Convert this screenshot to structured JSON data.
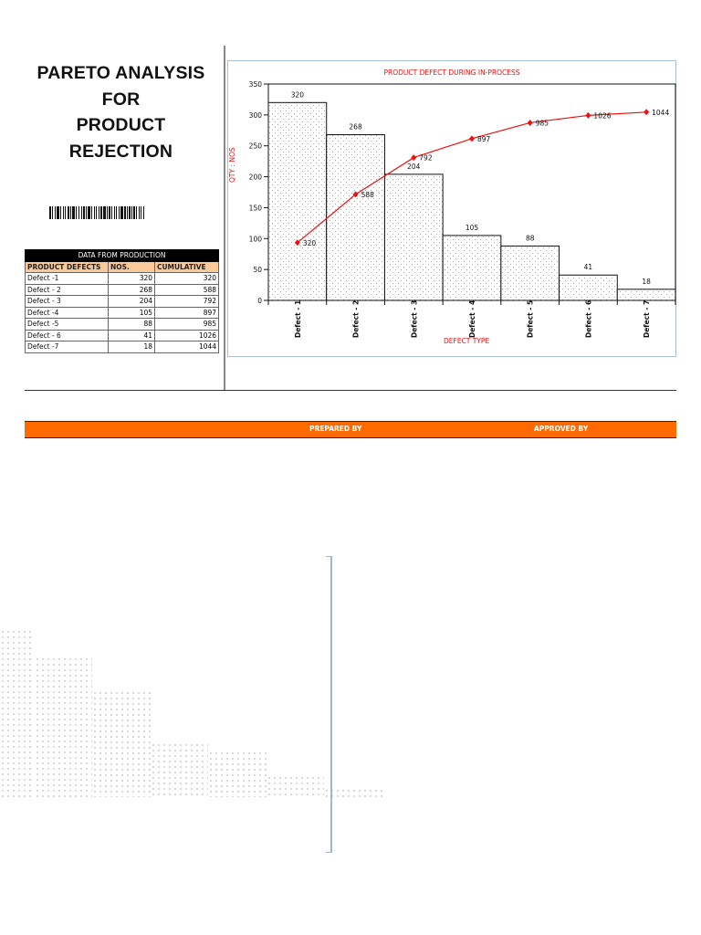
{
  "title": {
    "lines": [
      "PARETO ANALYSIS",
      "FOR",
      "PRODUCT",
      "REJECTION"
    ]
  },
  "table": {
    "caption": "DATA FROM PRODUCTION",
    "headers": [
      "PRODUCT DEFECTS",
      "NOS.",
      "CUMULATIVE"
    ],
    "rows": [
      {
        "defect": "Defect -1",
        "nos": "320",
        "cumulative": "320"
      },
      {
        "defect": "Defect - 2",
        "nos": "268",
        "cumulative": "588"
      },
      {
        "defect": "Defect - 3",
        "nos": "204",
        "cumulative": "792"
      },
      {
        "defect": "Defect -4",
        "nos": "105",
        "cumulative": "897"
      },
      {
        "defect": "Defect -5",
        "nos": "88",
        "cumulative": "985"
      },
      {
        "defect": "Defect - 6",
        "nos": "41",
        "cumulative": "1026"
      },
      {
        "defect": "Defect -7",
        "nos": "18",
        "cumulative": "1044"
      }
    ]
  },
  "footer": {
    "prepared_by": "PREPARED BY",
    "approved_by": "APPROVED BY",
    "bar_color": "#ff6a00"
  },
  "chart_data": {
    "type": "bar",
    "title": "PRODUCT DEFECT DURING IN-PROCESS",
    "xlabel": "DEFECT TYPE",
    "ylabel": "QTY : NOS",
    "ylim": [
      0,
      350
    ],
    "yticks": [
      0,
      50,
      100,
      150,
      200,
      250,
      300,
      350
    ],
    "secondary_ylim": [
      0,
      1200
    ],
    "grid": false,
    "legend": "none",
    "categories": [
      "Defect - 1",
      "Defect - 2",
      "Defect - 3",
      "Defect - 4",
      "Defect - 5",
      "Defect - 6",
      "Defect - 7"
    ],
    "series": [
      {
        "name": "NOS.",
        "type": "bar",
        "values": [
          320,
          268,
          204,
          105,
          88,
          41,
          18
        ],
        "labels": [
          "320",
          "268",
          "204",
          "105",
          "88",
          "41",
          "18"
        ],
        "pattern": "dotted",
        "color": "#000000"
      },
      {
        "name": "CUMULATIVE",
        "type": "line",
        "axis": "secondary",
        "values": [
          320,
          588,
          792,
          897,
          985,
          1026,
          1044
        ],
        "labels": [
          "320",
          "588",
          "792",
          "897",
          "985",
          "1026",
          "1044"
        ],
        "color": "#ee1111",
        "marker": "diamond"
      }
    ]
  }
}
